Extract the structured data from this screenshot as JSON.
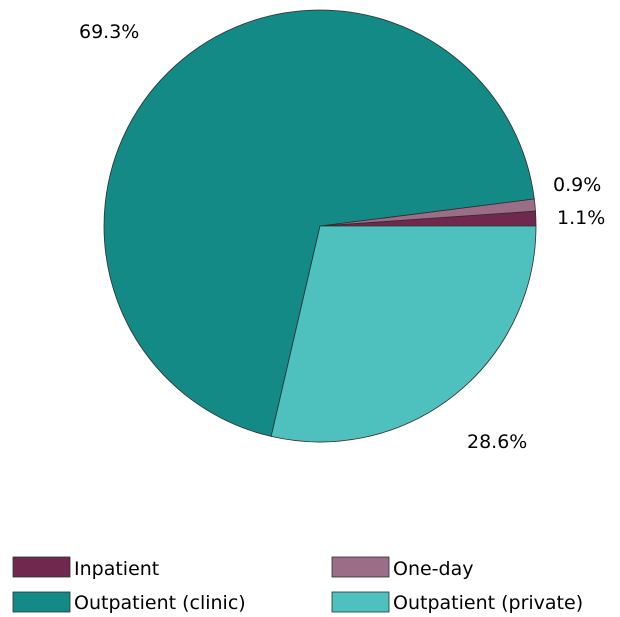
{
  "chart_data": {
    "type": "pie",
    "start_angle_deg": 0,
    "direction": "counterclockwise",
    "slices": [
      {
        "label": "Inpatient",
        "value": 1.1,
        "display": "1.1%",
        "color": "#70284f"
      },
      {
        "label": "One-day",
        "value": 0.9,
        "display": "0.9%",
        "color": "#9c6d86"
      },
      {
        "label": "Outpatient (clinic)",
        "value": 69.3,
        "display": "69.3%",
        "color": "#148a87"
      },
      {
        "label": "Outpatient (private)",
        "value": 28.6,
        "display": "28.6%",
        "color": "#4ec0bd"
      }
    ],
    "legend_position": "bottom"
  }
}
